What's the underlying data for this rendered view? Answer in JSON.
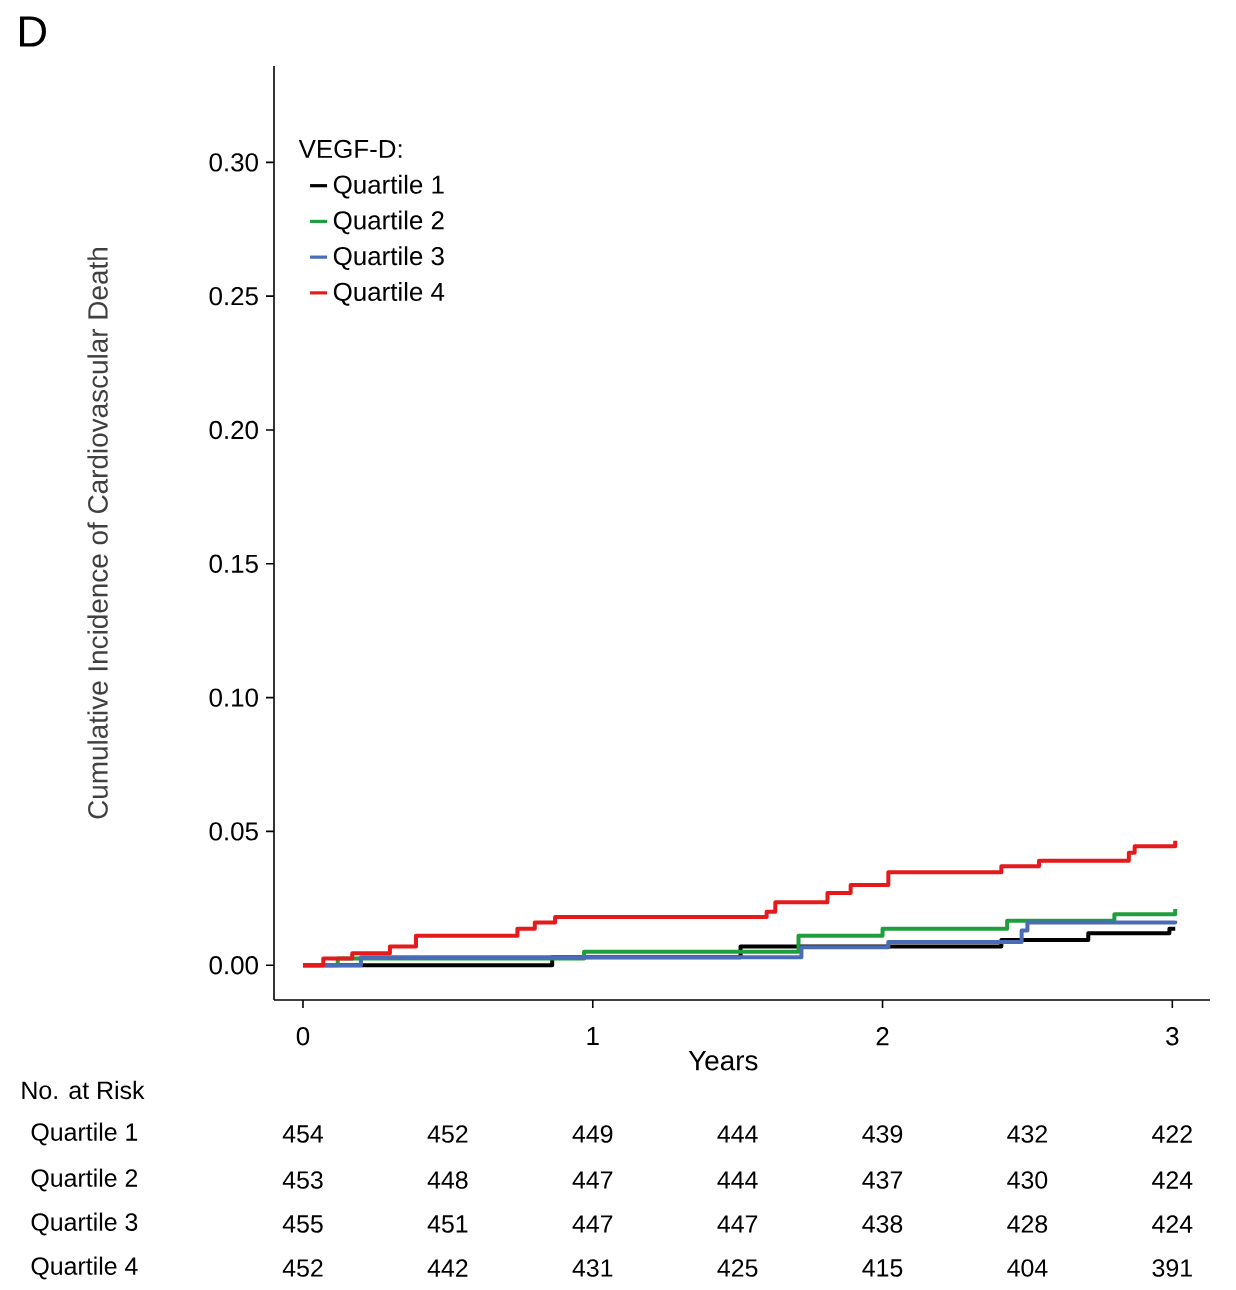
{
  "chart_data": {
    "type": "step",
    "title": "D",
    "xlabel": "Years",
    "ylabel": "Cumulative Incidence of Cardiovascular Death",
    "legend_title": "VEGF-D:",
    "legend": "top left",
    "grid": false,
    "xlim": [
      -0.1,
      3.13
    ],
    "xticks": [
      0,
      1,
      2,
      3
    ],
    "ylim": [
      -0.013,
      0.336
    ],
    "yticks": [
      {
        "value": 0,
        "label": "0.00"
      },
      {
        "value": 0.05,
        "label": "0.05"
      },
      {
        "value": 0.1,
        "label": "0.10"
      },
      {
        "value": 0.15,
        "label": "0.15"
      },
      {
        "value": 0.2,
        "label": "0.20"
      },
      {
        "value": 0.25,
        "label": "0.25"
      },
      {
        "value": 0.3,
        "label": "0.30"
      }
    ],
    "series": [
      {
        "name": "Quartile 1",
        "color": "#000000",
        "x": [
          0,
          0.86,
          1.51,
          2.41,
          2.71,
          2.99,
          3.01
        ],
        "values": [
          0,
          0.003,
          0.007,
          0.0094,
          0.0119,
          0.0136,
          0.0136
        ]
      },
      {
        "name": "Quartile 2",
        "color": "#1e9e3c",
        "x": [
          0,
          0.12,
          0.97,
          1.71,
          2.0,
          2.43,
          2.8,
          3.01
        ],
        "values": [
          0,
          0.0025,
          0.005,
          0.011,
          0.0136,
          0.0166,
          0.019,
          0.021
        ]
      },
      {
        "name": "Quartile 3",
        "color": "#4a6bb5",
        "x": [
          0,
          0.2,
          1.72,
          2.02,
          2.48,
          2.5,
          3.01
        ],
        "values": [
          0,
          0.003,
          0.0067,
          0.0087,
          0.013,
          0.016,
          0.0166
        ]
      },
      {
        "name": "Quartile 4",
        "color": "#e41a1c",
        "x": [
          0,
          0.07,
          0.17,
          0.3,
          0.39,
          0.74,
          0.8,
          0.87,
          1.6,
          1.63,
          1.81,
          1.89,
          2.02,
          2.41,
          2.54,
          2.85,
          2.87,
          3.01
        ],
        "values": [
          0,
          0.0025,
          0.0045,
          0.007,
          0.011,
          0.0136,
          0.016,
          0.018,
          0.02,
          0.0235,
          0.027,
          0.03,
          0.0347,
          0.037,
          0.039,
          0.042,
          0.0445,
          0.0465
        ]
      }
    ],
    "annotations": [
      "No. at Risk",
      "Quartile 1",
      "454",
      "452",
      "449",
      "444",
      "439",
      "432",
      "422",
      "Quartile 2",
      "453",
      "448",
      "447",
      "444",
      "437",
      "430",
      "424",
      "Quartile 3",
      "455",
      "451",
      "447",
      "447",
      "438",
      "428",
      "424",
      "Quartile 4",
      "452",
      "442",
      "431",
      "425",
      "415",
      "404",
      "391"
    ]
  }
}
